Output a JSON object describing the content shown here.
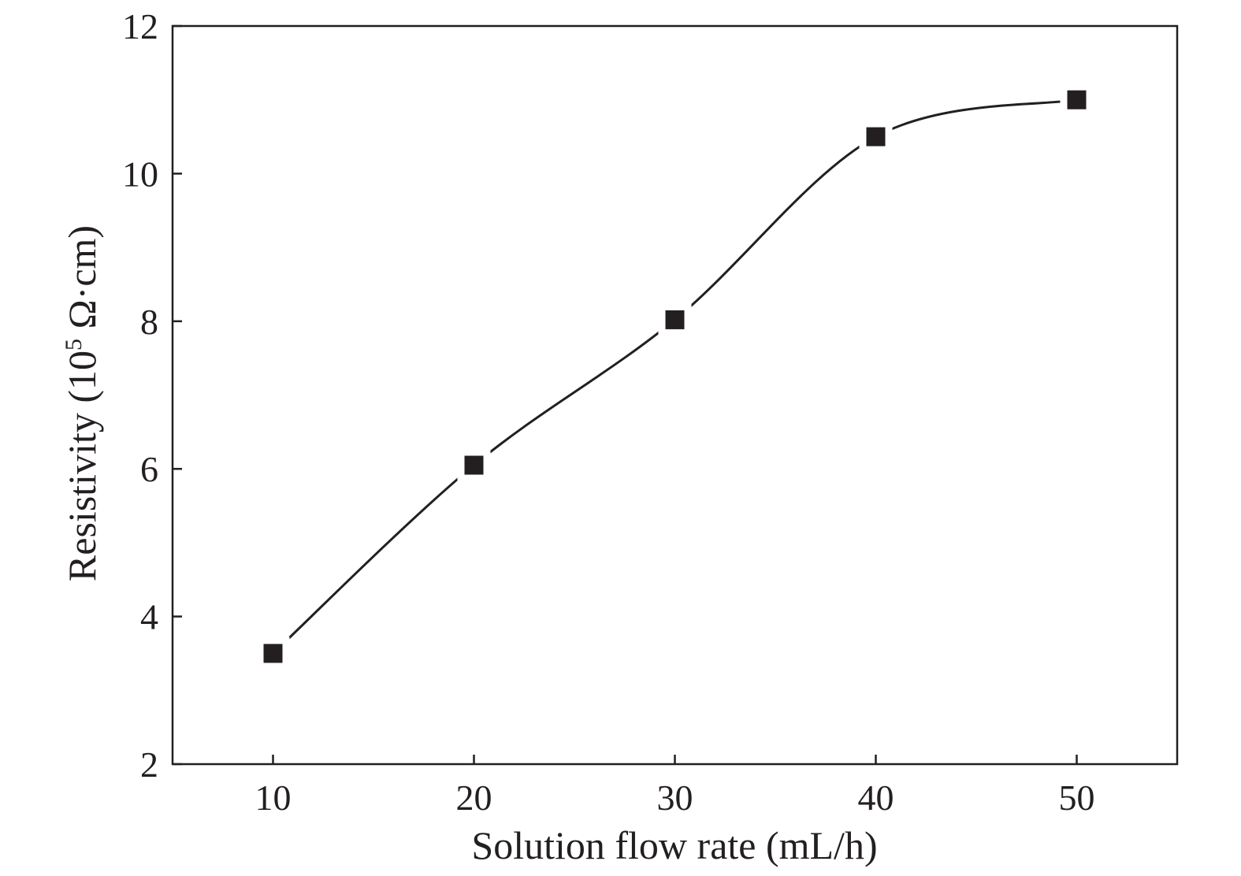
{
  "chart_data": {
    "type": "line",
    "title": "",
    "xlabel": "Solution flow rate (mL/h)",
    "ylabel": {
      "prefix": "Resistivity (10",
      "superscript": "5",
      "unit": " Ω·cm)"
    },
    "xlim": [
      5,
      55
    ],
    "ylim": [
      2,
      12
    ],
    "xticks": [
      10,
      20,
      30,
      40,
      50
    ],
    "yticks": [
      2,
      4,
      6,
      8,
      10,
      12
    ],
    "grid": false,
    "legend": "none",
    "series": [
      {
        "name": "Resistivity",
        "marker": "square",
        "smooth": true,
        "x": [
          10,
          20,
          30,
          40,
          50
        ],
        "y": [
          3.5,
          6.05,
          8.02,
          10.5,
          11.0
        ]
      }
    ]
  },
  "colors": {
    "ink": "#231f20",
    "background": "#ffffff"
  }
}
